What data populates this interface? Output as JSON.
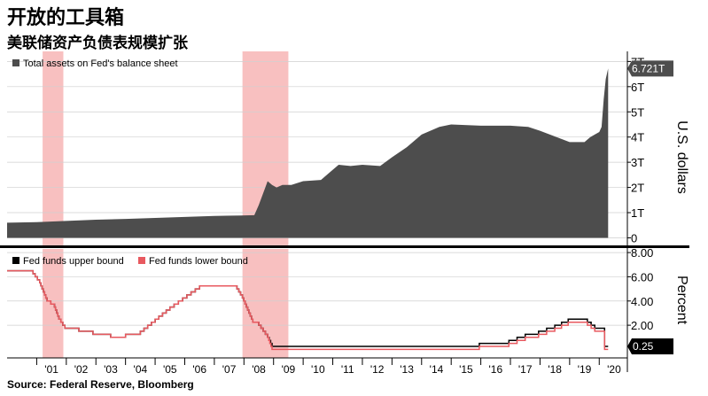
{
  "header": {
    "title": "开放的工具箱",
    "subtitle": "美联储资产负债表规模扩张"
  },
  "footer": {
    "source": "Source: Federal Reserve, Bloomberg"
  },
  "colors": {
    "assets_fill": "#4d4d4d",
    "recession_band": "#f7b5b5",
    "upper_bound_line": "#000000",
    "lower_bound_line": "#e8595f",
    "frame": "#000000",
    "grid": "#cfcfcf"
  },
  "chart_data": [
    {
      "type": "area",
      "title": "",
      "ylabel": "U.S. dollars",
      "ylim": [
        -0.3,
        7.4
      ],
      "yticks": [
        "0",
        "1T",
        "2T",
        "3T",
        "4T",
        "5T",
        "6T",
        "7T"
      ],
      "legend": {
        "label": "Total assets on Fed's balance sheet",
        "placement": "top-left"
      },
      "latest_value_label": "6.721T",
      "recession_periods": [
        [
          2001.2,
          2001.9
        ],
        [
          2007.95,
          2009.5
        ]
      ],
      "series": [
        {
          "name": "Total assets on Fed's balance sheet",
          "x": [
            2000.0,
            2001.0,
            2002.0,
            2003.0,
            2004.0,
            2005.0,
            2006.0,
            2007.0,
            2007.9,
            2008.35,
            2008.5,
            2008.72,
            2008.8,
            2008.95,
            2009.1,
            2009.3,
            2009.6,
            2010.0,
            2010.6,
            2010.9,
            2011.2,
            2011.6,
            2012.0,
            2012.6,
            2013.0,
            2013.5,
            2014.0,
            2014.6,
            2015.0,
            2016.0,
            2017.0,
            2017.6,
            2018.0,
            2019.0,
            2019.5,
            2019.7,
            2019.85,
            2020.0,
            2020.08,
            2020.15,
            2020.22,
            2020.3
          ],
          "y": [
            0.6,
            0.62,
            0.67,
            0.72,
            0.75,
            0.79,
            0.83,
            0.87,
            0.89,
            0.9,
            1.3,
            2.0,
            2.25,
            2.1,
            2.0,
            2.1,
            2.1,
            2.25,
            2.3,
            2.6,
            2.9,
            2.85,
            2.9,
            2.85,
            3.2,
            3.6,
            4.1,
            4.4,
            4.5,
            4.45,
            4.45,
            4.4,
            4.25,
            3.8,
            3.8,
            4.0,
            4.1,
            4.2,
            4.4,
            5.5,
            6.3,
            6.72
          ]
        }
      ]
    },
    {
      "type": "line",
      "title": "",
      "ylabel": "Percent",
      "ylim": [
        -0.7,
        8.3
      ],
      "yticks": [
        "2.00",
        "4.00",
        "6.00",
        "8.00"
      ],
      "legend_placement": "top-left",
      "latest_value_label": "0.25",
      "xlim": [
        2000.0,
        2020.95
      ],
      "xticks": [
        "'01",
        "'02",
        "'03",
        "'04",
        "'05",
        "'06",
        "'07",
        "'08",
        "'09",
        "'10",
        "'11",
        "'12",
        "'13",
        "'14",
        "'15",
        "'16",
        "'17",
        "'18",
        "'19",
        "'20"
      ],
      "series": [
        {
          "name": "Fed funds upper bound",
          "x": [
            2000.0,
            2000.8,
            2001.1,
            2001.35,
            2001.6,
            2001.75,
            2001.95,
            2002.9,
            2003.5,
            2004.5,
            2005.5,
            2006.5,
            2007.7,
            2007.95,
            2008.3,
            2008.5,
            2008.8,
            2008.95,
            2015.95,
            2016.95,
            2017.5,
            2017.95,
            2018.5,
            2018.95,
            2019.6,
            2019.85,
            2020.15,
            2020.18,
            2020.3
          ],
          "y": [
            6.5,
            6.5,
            5.5,
            4.0,
            3.5,
            2.5,
            1.75,
            1.25,
            1.0,
            1.5,
            3.5,
            5.25,
            5.25,
            4.25,
            2.25,
            2.0,
            1.0,
            0.25,
            0.5,
            0.75,
            1.25,
            1.5,
            2.0,
            2.5,
            2.25,
            1.75,
            1.75,
            0.25,
            0.25
          ]
        },
        {
          "name": "Fed funds lower bound",
          "x": [
            2000.0,
            2000.8,
            2001.1,
            2001.35,
            2001.6,
            2001.75,
            2001.95,
            2002.9,
            2003.5,
            2004.5,
            2005.5,
            2006.5,
            2007.7,
            2007.95,
            2008.3,
            2008.5,
            2008.8,
            2008.95,
            2015.95,
            2016.95,
            2017.5,
            2017.95,
            2018.5,
            2018.95,
            2019.6,
            2019.85,
            2020.15,
            2020.18,
            2020.3
          ],
          "y": [
            6.5,
            6.5,
            5.5,
            4.0,
            3.5,
            2.5,
            1.75,
            1.25,
            1.0,
            1.5,
            3.5,
            5.25,
            5.25,
            4.25,
            2.25,
            2.0,
            1.0,
            0.0,
            0.25,
            0.5,
            1.0,
            1.25,
            1.75,
            2.25,
            2.0,
            1.5,
            1.5,
            0.0,
            0.0
          ]
        }
      ]
    }
  ]
}
